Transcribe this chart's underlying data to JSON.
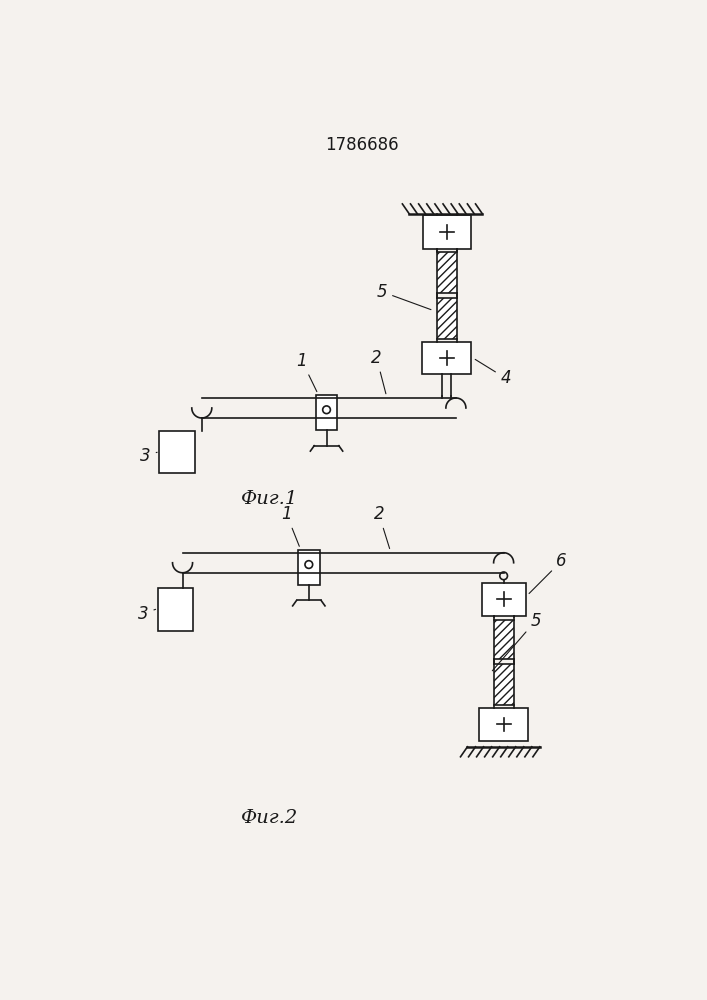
{
  "title": "1786686",
  "fig1_label": "Фиг.1",
  "fig2_label": "Фиг.2",
  "bg_color": "#f5f2ee",
  "line_color": "#1a1a1a",
  "line_width": 1.2,
  "thick_lw": 1.8
}
